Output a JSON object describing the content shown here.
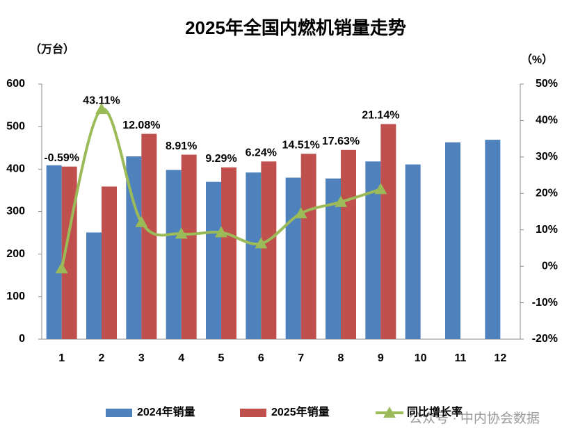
{
  "chart_data": {
    "type": "bar",
    "title": "2025年全国内燃机销量走势",
    "y_label": "（万台）",
    "y2_label": "（%）",
    "categories": [
      "1",
      "2",
      "3",
      "4",
      "5",
      "6",
      "7",
      "8",
      "9",
      "10",
      "11",
      "12"
    ],
    "series": [
      {
        "name": "2024年销量",
        "color": "#4f81bd",
        "type": "bar",
        "values": [
          409,
          251,
          430,
          398,
          370,
          392,
          380,
          378,
          418,
          411,
          463,
          469
        ]
      },
      {
        "name": "2025年销量",
        "color": "#c0504d",
        "type": "bar",
        "values": [
          406,
          359,
          483,
          434,
          404,
          418,
          436,
          445,
          506,
          null,
          null,
          null
        ]
      },
      {
        "name": "同比增长率",
        "color": "#9bbb59",
        "type": "line",
        "axis": "y2",
        "values": [
          -0.59,
          43.11,
          12.08,
          8.91,
          9.29,
          6.24,
          14.51,
          17.63,
          21.14,
          null,
          null,
          null
        ],
        "value_labels": [
          "-0.59%",
          "43.11%",
          "12.08%",
          "8.91%",
          "9.29%",
          "6.24%",
          "14.51%",
          "17.63%",
          "21.14%",
          null,
          null,
          null
        ]
      }
    ],
    "ylim": [
      0,
      600
    ],
    "yticks": [
      0,
      100,
      200,
      300,
      400,
      500,
      600
    ],
    "y2lim": [
      -20,
      50
    ],
    "y2ticks": [
      {
        "value": -20,
        "label": "-20%"
      },
      {
        "value": -10,
        "label": "-10%"
      },
      {
        "value": 0,
        "label": "0%"
      },
      {
        "value": 10,
        "label": "10%"
      },
      {
        "value": 20,
        "label": "20%"
      },
      {
        "value": 30,
        "label": "30%"
      },
      {
        "value": 40,
        "label": "40%"
      },
      {
        "value": 50,
        "label": "50%"
      }
    ],
    "legend": "bottom",
    "watermark": "公众号 · 中内协会数据"
  }
}
